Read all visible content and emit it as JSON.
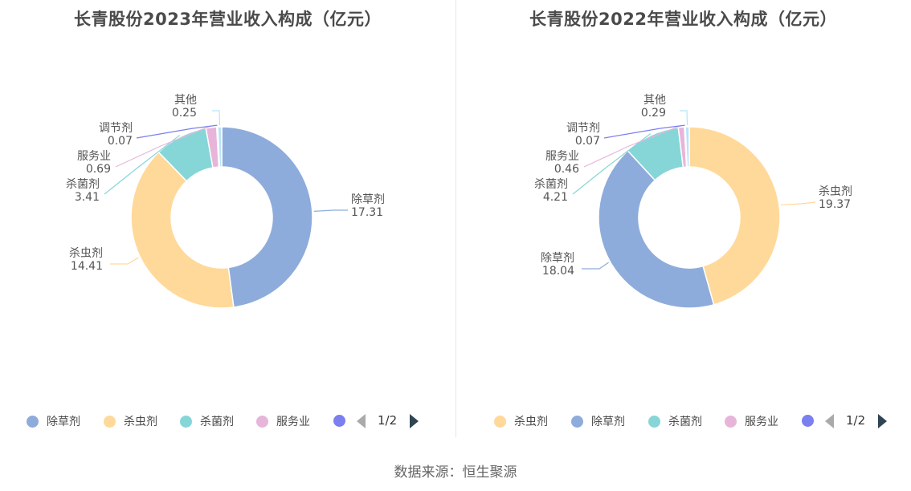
{
  "footer": {
    "source": "数据来源：恒生聚源"
  },
  "charts": [
    {
      "title": "长青股份2023年营业收入构成（亿元）",
      "legend": {
        "page": "1/2",
        "extra_color": "#7b7ff0"
      },
      "chart_data": {
        "type": "pie",
        "title": "长青股份2023年营业收入构成（亿元）",
        "donut": true,
        "slices": [
          {
            "label": "除草剂",
            "value": 17.31,
            "display": "17.31",
            "color": "#8eacdb"
          },
          {
            "label": "杀虫剂",
            "value": 14.41,
            "display": "14.41",
            "color": "#ffd99a"
          },
          {
            "label": "杀菌剂",
            "value": 3.41,
            "display": "3.41",
            "color": "#86d6d8"
          },
          {
            "label": "服务业",
            "value": 0.69,
            "display": "0.69",
            "color": "#e8b5da"
          },
          {
            "label": "调节剂",
            "value": 0.07,
            "display": "0.07",
            "color": "#7b7ff0"
          },
          {
            "label": "其他",
            "value": 0.25,
            "display": "0.25",
            "color": "#b9e3f7"
          }
        ],
        "legend_shown": [
          "除草剂",
          "杀虫剂",
          "杀菌剂",
          "服务业"
        ],
        "legend_position": "bottom"
      }
    },
    {
      "title": "长青股份2022年营业收入构成（亿元）",
      "legend": {
        "page": "1/2",
        "extra_color": "#7b7ff0"
      },
      "chart_data": {
        "type": "pie",
        "title": "长青股份2022年营业收入构成（亿元）",
        "donut": true,
        "slices": [
          {
            "label": "杀虫剂",
            "value": 19.37,
            "display": "19.37",
            "color": "#ffd99a"
          },
          {
            "label": "除草剂",
            "value": 18.04,
            "display": "18.04",
            "color": "#8eacdb"
          },
          {
            "label": "杀菌剂",
            "value": 4.21,
            "display": "4.21",
            "color": "#86d6d8"
          },
          {
            "label": "服务业",
            "value": 0.46,
            "display": "0.46",
            "color": "#e8b5da"
          },
          {
            "label": "调节剂",
            "value": 0.07,
            "display": "0.07",
            "color": "#7b7ff0"
          },
          {
            "label": "其他",
            "value": 0.29,
            "display": "0.29",
            "color": "#b9e3f7"
          }
        ],
        "legend_shown": [
          "杀虫剂",
          "除草剂",
          "杀菌剂",
          "服务业"
        ],
        "legend_position": "bottom"
      }
    }
  ]
}
